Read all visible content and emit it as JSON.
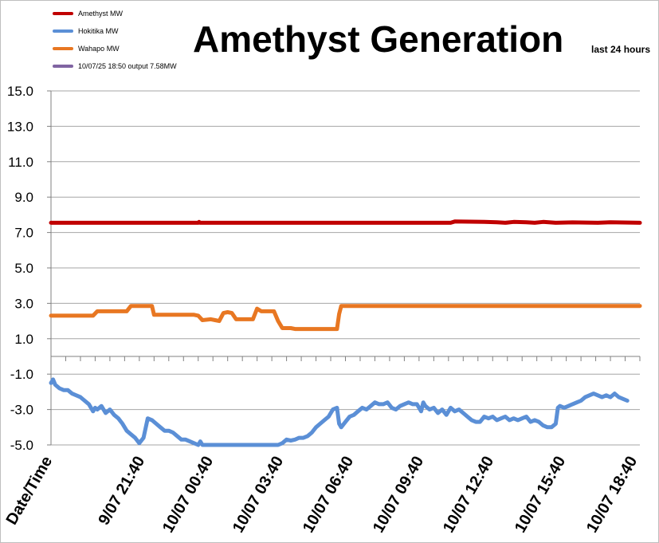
{
  "chart_data": {
    "type": "line",
    "title": "Amethyst Generation",
    "subtitle": "last 24  hours",
    "yticks": [
      "15.0",
      "13.0",
      "11.0",
      "9.0",
      "7.0",
      "5.0",
      "3.0",
      "1.0",
      "-1.0",
      "-3.0",
      "-5.0"
    ],
    "xticks": [
      "Date/Time",
      "9/07 21:40",
      "10/07 00:40",
      "10/07 03:40",
      "10/07 06:40",
      "10/07 09:40",
      "10/07 12:40",
      "10/07 15:40",
      "10/07 18:40"
    ],
    "ylim": [
      -5.0,
      15.0
    ],
    "grid": true,
    "legend_position": "top-left",
    "legend": [
      {
        "name": "Amethyst MW",
        "color": "#c00000"
      },
      {
        "name": "Hokitika MW",
        "color": "#5b8fd6"
      },
      {
        "name": "Wahapo MW",
        "color": "#e87722"
      },
      {
        "name": "10/07/25 18:50 output 7.58MW",
        "color": "#8064a2"
      }
    ],
    "series": [
      {
        "name": "Amethyst MW",
        "color": "#c00000",
        "points": [
          [
            0.0,
            7.55
          ],
          [
            35.0,
            7.55
          ],
          [
            35.2,
            7.6
          ],
          [
            35.5,
            7.55
          ],
          [
            95.0,
            7.55
          ],
          [
            96.0,
            7.62
          ],
          [
            103.0,
            7.6
          ],
          [
            106.0,
            7.58
          ],
          [
            108.0,
            7.55
          ],
          [
            110.0,
            7.6
          ],
          [
            113.0,
            7.58
          ],
          [
            115.0,
            7.55
          ],
          [
            117.0,
            7.6
          ],
          [
            120.0,
            7.55
          ],
          [
            124.0,
            7.57
          ],
          [
            130.0,
            7.55
          ],
          [
            133.0,
            7.58
          ],
          [
            140.0,
            7.55
          ]
        ]
      },
      {
        "name": "Hokitika MW",
        "color": "#5b8fd6",
        "points": [
          [
            0.0,
            -1.5
          ],
          [
            0.5,
            -1.3
          ],
          [
            1.0,
            -1.6
          ],
          [
            2.0,
            -1.8
          ],
          [
            3.0,
            -1.9
          ],
          [
            4.0,
            -1.9
          ],
          [
            5.0,
            -2.1
          ],
          [
            6.0,
            -2.2
          ],
          [
            7.0,
            -2.3
          ],
          [
            8.0,
            -2.5
          ],
          [
            9.0,
            -2.7
          ],
          [
            10.0,
            -3.1
          ],
          [
            10.5,
            -2.9
          ],
          [
            11.0,
            -3.0
          ],
          [
            12.0,
            -2.8
          ],
          [
            13.0,
            -3.2
          ],
          [
            14.0,
            -3.0
          ],
          [
            15.0,
            -3.3
          ],
          [
            16.0,
            -3.5
          ],
          [
            17.0,
            -3.8
          ],
          [
            18.0,
            -4.2
          ],
          [
            19.0,
            -4.4
          ],
          [
            20.0,
            -4.6
          ],
          [
            21.0,
            -4.9
          ],
          [
            22.0,
            -4.6
          ],
          [
            23.0,
            -3.5
          ],
          [
            24.0,
            -3.6
          ],
          [
            25.0,
            -3.8
          ],
          [
            26.0,
            -4.0
          ],
          [
            27.0,
            -4.2
          ],
          [
            28.0,
            -4.2
          ],
          [
            29.0,
            -4.3
          ],
          [
            30.0,
            -4.5
          ],
          [
            31.0,
            -4.7
          ],
          [
            32.0,
            -4.7
          ],
          [
            33.0,
            -4.8
          ],
          [
            34.0,
            -4.9
          ],
          [
            35.0,
            -5.0
          ],
          [
            35.5,
            -4.8
          ],
          [
            36.0,
            -5.0
          ],
          [
            37.0,
            -5.0
          ],
          [
            40.0,
            -5.0
          ],
          [
            48.0,
            -5.0
          ],
          [
            54.0,
            -5.0
          ],
          [
            55.0,
            -4.9
          ],
          [
            56.0,
            -4.7
          ],
          [
            57.0,
            -4.75
          ],
          [
            58.0,
            -4.7
          ],
          [
            59.0,
            -4.6
          ],
          [
            60.0,
            -4.6
          ],
          [
            61.0,
            -4.5
          ],
          [
            62.0,
            -4.3
          ],
          [
            63.0,
            -4.0
          ],
          [
            64.0,
            -3.8
          ],
          [
            65.0,
            -3.6
          ],
          [
            66.0,
            -3.4
          ],
          [
            67.0,
            -3.0
          ],
          [
            68.0,
            -2.9
          ],
          [
            68.5,
            -3.8
          ],
          [
            69.0,
            -4.0
          ],
          [
            70.0,
            -3.7
          ],
          [
            71.0,
            -3.4
          ],
          [
            72.0,
            -3.3
          ],
          [
            73.0,
            -3.1
          ],
          [
            74.0,
            -2.9
          ],
          [
            75.0,
            -3.0
          ],
          [
            76.0,
            -2.8
          ],
          [
            77.0,
            -2.6
          ],
          [
            78.0,
            -2.7
          ],
          [
            79.0,
            -2.7
          ],
          [
            80.0,
            -2.6
          ],
          [
            81.0,
            -2.9
          ],
          [
            82.0,
            -3.0
          ],
          [
            83.0,
            -2.8
          ],
          [
            84.0,
            -2.7
          ],
          [
            85.0,
            -2.6
          ],
          [
            86.0,
            -2.7
          ],
          [
            87.0,
            -2.7
          ],
          [
            88.0,
            -3.1
          ],
          [
            88.5,
            -2.6
          ],
          [
            89.0,
            -2.8
          ],
          [
            90.0,
            -3.0
          ],
          [
            91.0,
            -2.9
          ],
          [
            92.0,
            -3.2
          ],
          [
            93.0,
            -3.0
          ],
          [
            94.0,
            -3.3
          ],
          [
            95.0,
            -2.9
          ],
          [
            96.0,
            -3.1
          ],
          [
            97.0,
            -3.0
          ],
          [
            98.0,
            -3.2
          ],
          [
            99.0,
            -3.4
          ],
          [
            100.0,
            -3.6
          ],
          [
            101.0,
            -3.7
          ],
          [
            102.0,
            -3.7
          ],
          [
            103.0,
            -3.4
          ],
          [
            104.0,
            -3.5
          ],
          [
            105.0,
            -3.4
          ],
          [
            106.0,
            -3.6
          ],
          [
            107.0,
            -3.5
          ],
          [
            108.0,
            -3.4
          ],
          [
            109.0,
            -3.6
          ],
          [
            110.0,
            -3.5
          ],
          [
            111.0,
            -3.6
          ],
          [
            112.0,
            -3.5
          ],
          [
            113.0,
            -3.4
          ],
          [
            114.0,
            -3.7
          ],
          [
            115.0,
            -3.6
          ],
          [
            116.0,
            -3.7
          ],
          [
            117.0,
            -3.9
          ],
          [
            118.0,
            -4.0
          ],
          [
            119.0,
            -4.0
          ],
          [
            120.0,
            -3.8
          ],
          [
            120.5,
            -2.9
          ],
          [
            121.0,
            -2.8
          ],
          [
            122.0,
            -2.9
          ],
          [
            123.0,
            -2.8
          ],
          [
            124.0,
            -2.7
          ],
          [
            125.0,
            -2.6
          ],
          [
            126.0,
            -2.5
          ],
          [
            127.0,
            -2.3
          ],
          [
            128.0,
            -2.2
          ],
          [
            129.0,
            -2.1
          ],
          [
            130.0,
            -2.2
          ],
          [
            131.0,
            -2.3
          ],
          [
            132.0,
            -2.2
          ],
          [
            133.0,
            -2.3
          ],
          [
            134.0,
            -2.1
          ],
          [
            135.0,
            -2.3
          ],
          [
            136.0,
            -2.4
          ],
          [
            137.0,
            -2.5
          ]
        ]
      },
      {
        "name": "Wahapo MW",
        "color": "#e87722",
        "points": [
          [
            0.0,
            2.3
          ],
          [
            10.0,
            2.3
          ],
          [
            11.0,
            2.55
          ],
          [
            18.0,
            2.55
          ],
          [
            19.0,
            2.85
          ],
          [
            24.0,
            2.85
          ],
          [
            24.5,
            2.35
          ],
          [
            34.0,
            2.35
          ],
          [
            35.0,
            2.3
          ],
          [
            36.0,
            2.05
          ],
          [
            38.0,
            2.1
          ],
          [
            39.0,
            2.05
          ],
          [
            40.0,
            2.0
          ],
          [
            41.0,
            2.45
          ],
          [
            42.0,
            2.5
          ],
          [
            43.0,
            2.45
          ],
          [
            44.0,
            2.1
          ],
          [
            48.0,
            2.1
          ],
          [
            49.0,
            2.7
          ],
          [
            50.0,
            2.55
          ],
          [
            53.0,
            2.55
          ],
          [
            54.0,
            2.0
          ],
          [
            55.0,
            1.6
          ],
          [
            57.0,
            1.6
          ],
          [
            58.0,
            1.55
          ],
          [
            68.0,
            1.55
          ],
          [
            68.5,
            2.4
          ],
          [
            69.0,
            2.85
          ],
          [
            140.0,
            2.85
          ]
        ]
      }
    ]
  }
}
